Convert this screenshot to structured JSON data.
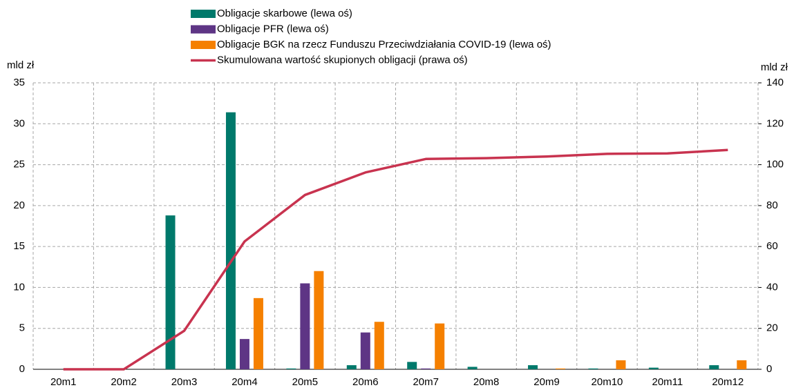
{
  "chart_data": {
    "type": "bar",
    "y_label": "mld zł",
    "y2_label": "mld zł",
    "categories": [
      "20m1",
      "20m2",
      "20m3",
      "20m4",
      "20m5",
      "20m6",
      "20m7",
      "20m8",
      "20m9",
      "20m10",
      "20m11",
      "20m12"
    ],
    "series": [
      {
        "name": "Obligacje skarbowe (lewa oś)",
        "color": "#00796b",
        "type": "bar",
        "values": [
          0,
          0,
          18.8,
          31.4,
          0.1,
          0.5,
          0.9,
          0.3,
          0.5,
          0.1,
          0.2,
          0.5
        ]
      },
      {
        "name": "Obligacje PFR (lewa oś)",
        "color": "#5e3585",
        "type": "bar",
        "values": [
          0,
          0,
          0,
          3.7,
          10.5,
          4.5,
          0.1,
          0,
          0,
          0,
          0,
          0
        ]
      },
      {
        "name": "Obligacje BGK na rzecz Funduszu Przeciwdziałania COVID-19 (lewa oś)",
        "color": "#f58000",
        "type": "bar",
        "values": [
          0,
          0,
          0,
          8.7,
          12.0,
          5.8,
          5.6,
          0,
          0.1,
          1.1,
          0,
          1.1
        ]
      },
      {
        "name": "Skumulowana wartość skupionych obligacji (prawa oś)",
        "color": "#c8334f",
        "type": "line",
        "axis": "y2",
        "values": [
          0,
          0,
          18.8,
          62.5,
          85.2,
          96.2,
          102.8,
          103.2,
          104.0,
          105.3,
          105.5,
          107.2
        ]
      }
    ],
    "ylim": [
      0,
      35
    ],
    "yticks": [
      0,
      5,
      10,
      15,
      20,
      25,
      30,
      35
    ],
    "y2lim": [
      0,
      140
    ],
    "y2ticks": [
      0,
      20,
      40,
      60,
      80,
      100,
      120,
      140
    ],
    "grid": true
  }
}
